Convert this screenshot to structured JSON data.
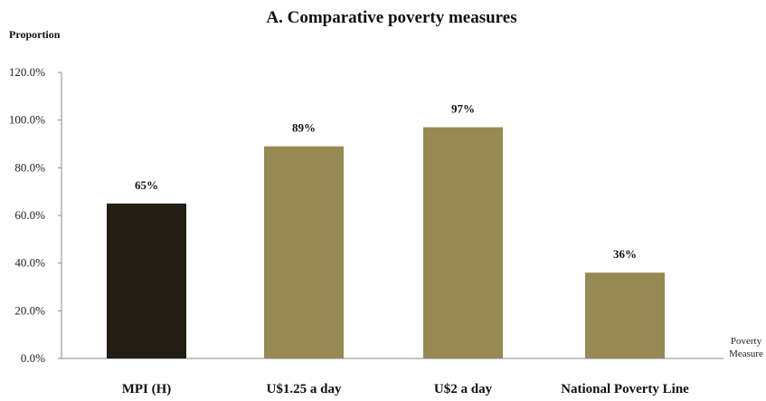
{
  "chart_data": {
    "type": "bar",
    "title": "A. Comparative poverty measures",
    "ylabel": "Proportion",
    "xlabel": "Poverty Measure",
    "ylim": [
      0,
      120
    ],
    "y_ticks": [
      "0.0%",
      "20.0%",
      "40.0%",
      "60.0%",
      "80.0%",
      "100.0%",
      "120.0%"
    ],
    "categories": [
      "MPI (H)",
      "U$1.25 a day",
      "U$2 a day",
      "National Poverty Line"
    ],
    "values": [
      65,
      89,
      97,
      36
    ],
    "data_labels": [
      "65%",
      "89%",
      "97%",
      "36%"
    ],
    "bar_colors": [
      "#221e13",
      "#968953",
      "#968953",
      "#968953"
    ],
    "grid": false,
    "legend": "none"
  }
}
